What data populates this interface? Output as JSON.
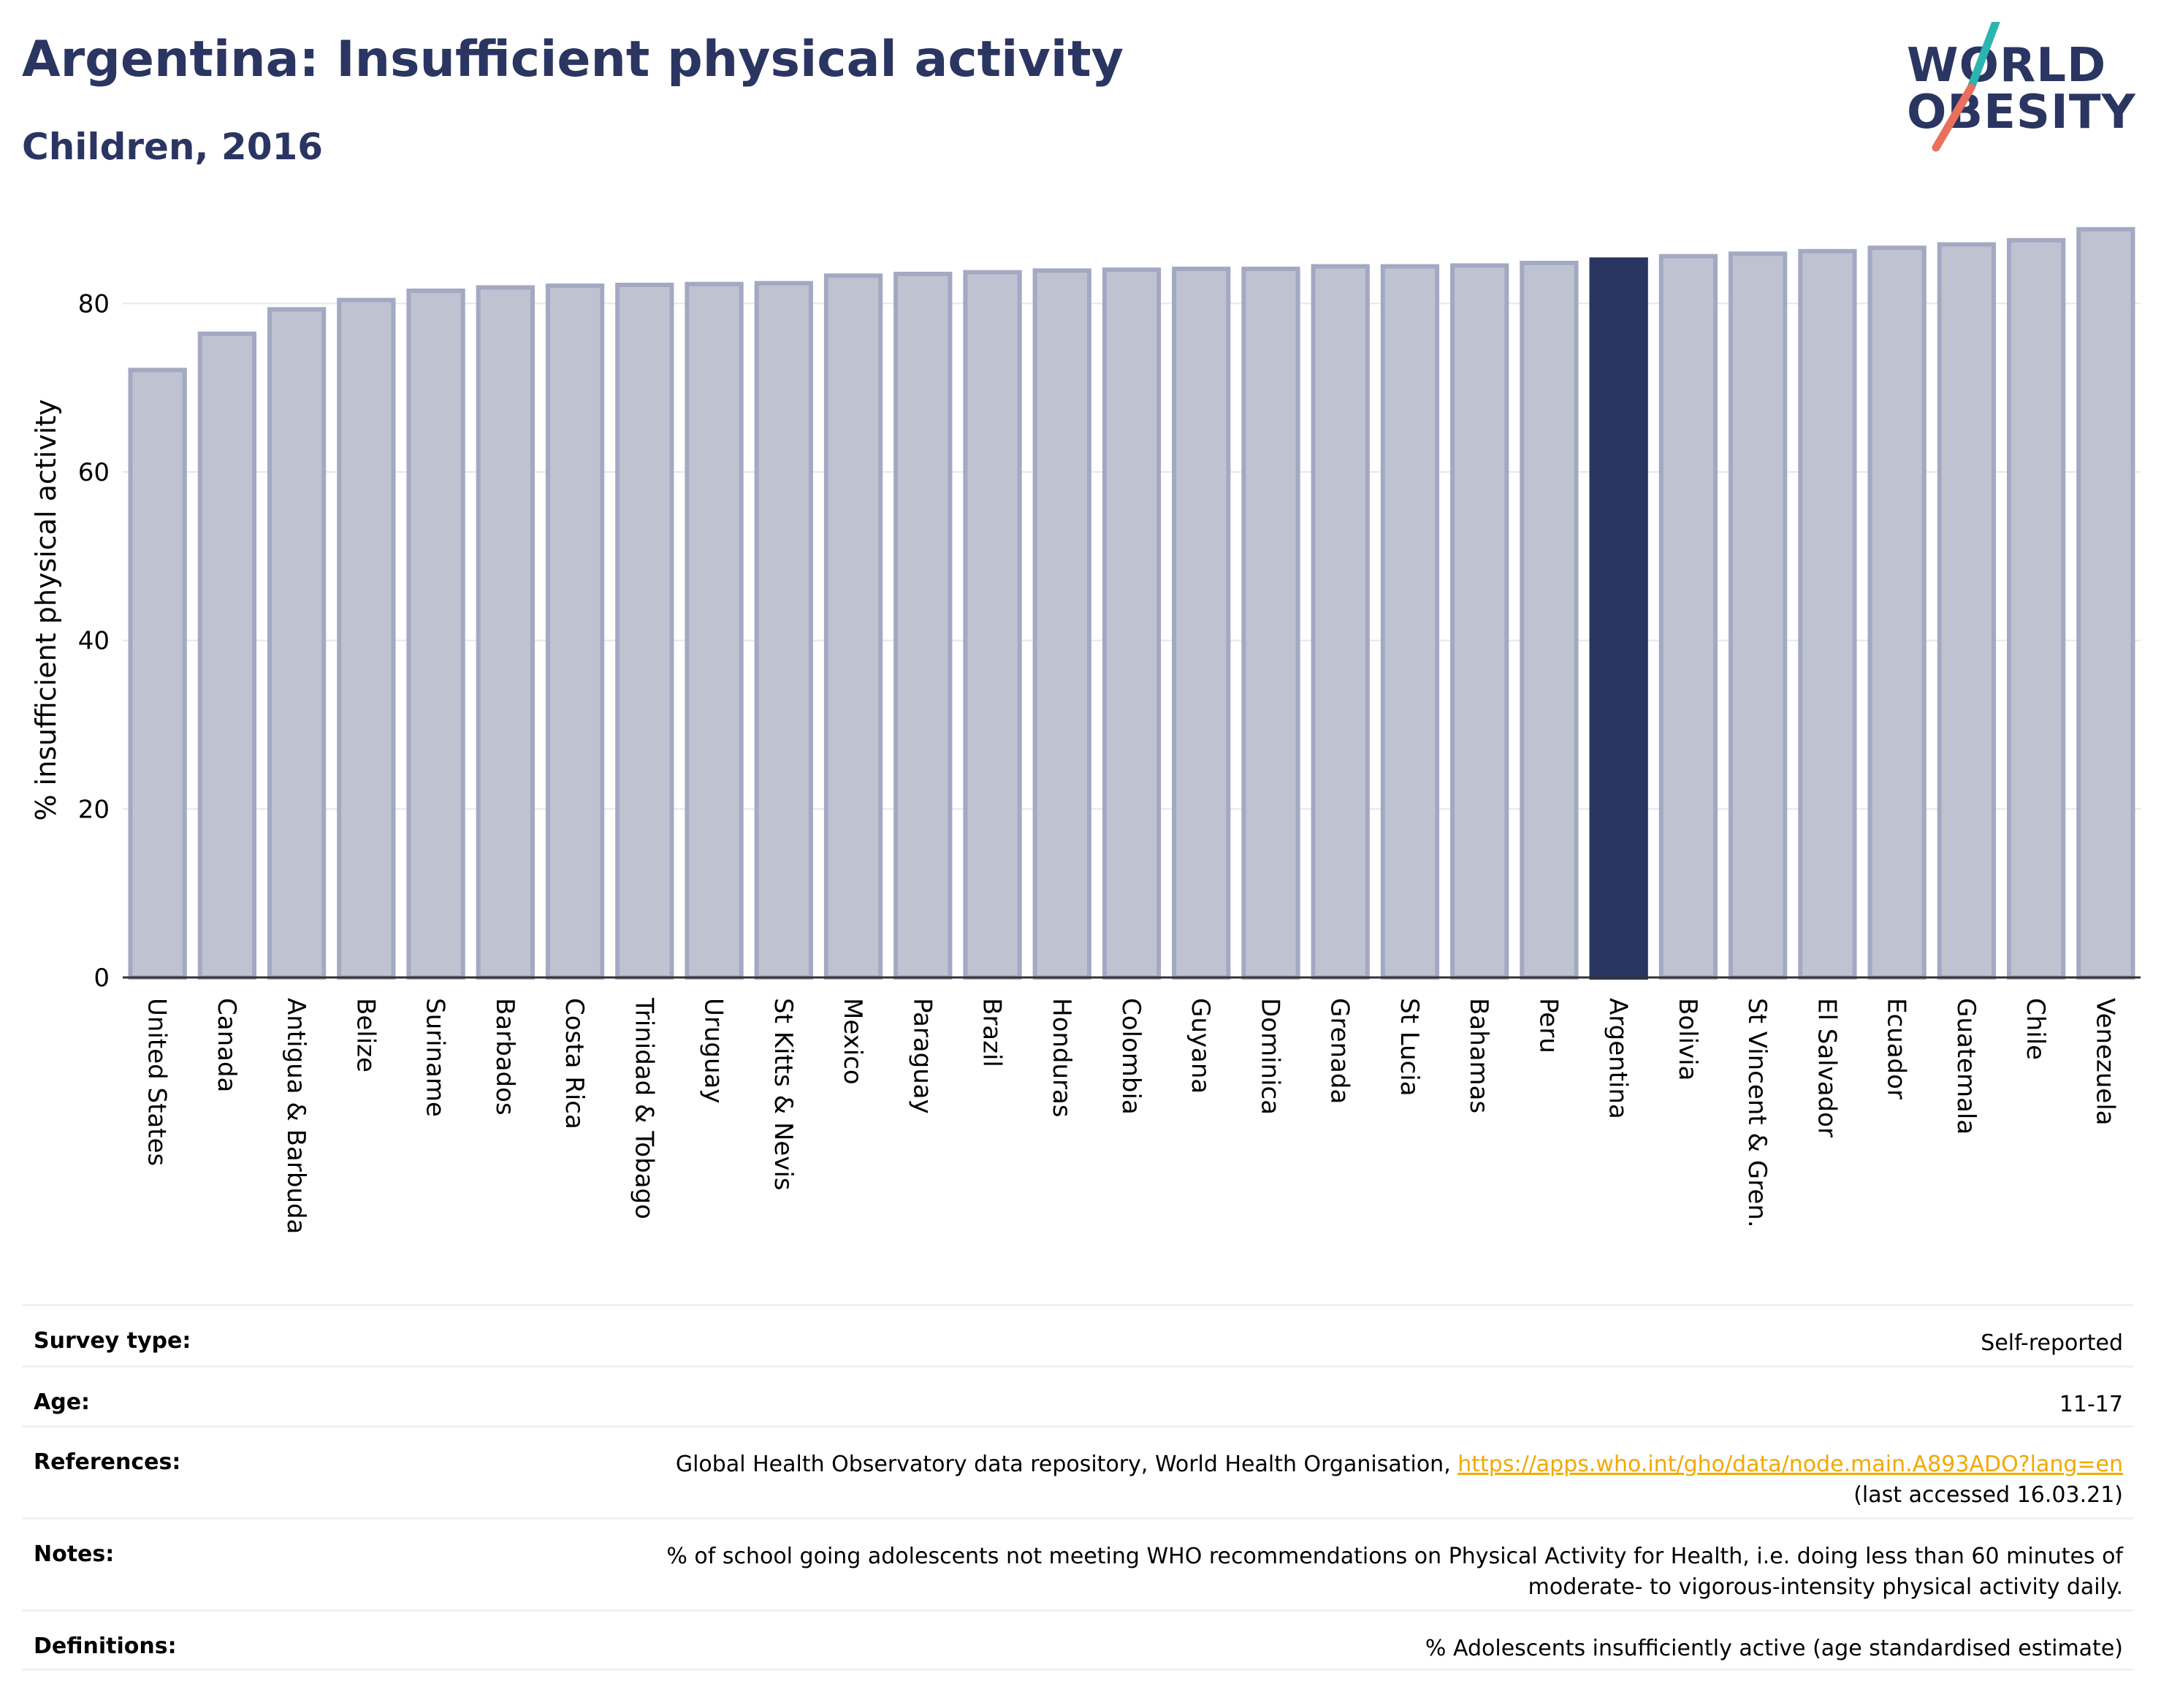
{
  "header": {
    "title": "Argentina: Insufficient physical activity",
    "subtitle": "Children, 2016"
  },
  "logo": {
    "line1": "WORLD",
    "line2": "OBESITY",
    "colors": {
      "text": "#2a3562",
      "slash_top": "#2bb5b0",
      "slash_bottom": "#e8705c"
    }
  },
  "chart_data": {
    "type": "bar",
    "ylabel": "% insufficient physical activity",
    "xlabel": "",
    "ylim": [
      0,
      90
    ],
    "yticks": [
      0,
      20,
      40,
      60,
      80
    ],
    "grid": true,
    "highlight": "Argentina",
    "colors": {
      "bar": "#bfc3d1",
      "bar_border": "#a3a9c2",
      "highlight": "#2a3562",
      "grid": "#e6e7ec"
    },
    "categories": [
      "United States",
      "Canada",
      "Antigua & Barbuda",
      "Belize",
      "Suriname",
      "Barbados",
      "Costa Rica",
      "Trinidad & Tobago",
      "Uruguay",
      "St Kitts & Nevis",
      "Mexico",
      "Paraguay",
      "Brazil",
      "Honduras",
      "Colombia",
      "Guyana",
      "Dominica",
      "Grenada",
      "St Lucia",
      "Bahamas",
      "Peru",
      "Argentina",
      "Bolivia",
      "St Vincent & Gren.",
      "El Salvador",
      "Ecuador",
      "Guatemala",
      "Chile",
      "Venezuela"
    ],
    "values": [
      72.1,
      76.4,
      79.3,
      80.4,
      81.5,
      81.9,
      82.1,
      82.2,
      82.3,
      82.4,
      83.3,
      83.5,
      83.7,
      83.9,
      84.0,
      84.1,
      84.1,
      84.4,
      84.4,
      84.5,
      84.8,
      85.2,
      85.6,
      85.9,
      86.2,
      86.6,
      87.0,
      87.5,
      88.8
    ]
  },
  "info": [
    {
      "label": "Survey type:",
      "value": "Self-reported"
    },
    {
      "label": "Age:",
      "value": "11-17"
    },
    {
      "label": "References:",
      "value_prefix": "Global Health Observatory data repository, World Health Organisation, ",
      "link": "https://apps.who.int/gho/data/node.main.A893ADO?lang=en",
      "value_suffix": "(last accessed 16.03.21)"
    },
    {
      "label": "Notes:",
      "value_line1": "% of school going adolescents not meeting WHO recommendations on Physical Activity for Health, i.e. doing less than 60 minutes of",
      "value_line2": "moderate- to vigorous-intensity physical activity daily."
    },
    {
      "label": "Definitions:",
      "value": "% Adolescents insufficiently active (age standardised estimate)"
    }
  ]
}
